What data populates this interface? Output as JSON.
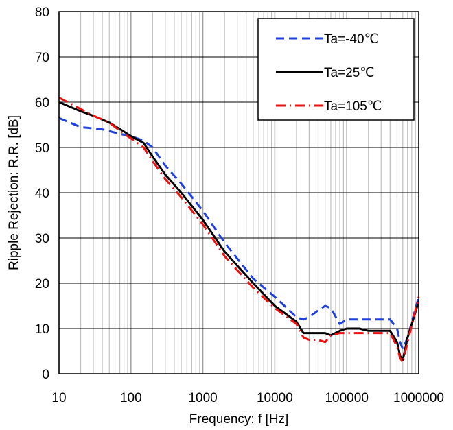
{
  "chart_data": {
    "type": "line",
    "xlabel": "Frequency: f [Hz]",
    "ylabel": "Ripple Rejection: R.R. [dB]",
    "x_scale": "log",
    "xlim": [
      10,
      1000000
    ],
    "ylim": [
      0,
      80
    ],
    "x_ticks": [
      "10",
      "100",
      "1000",
      "10000",
      "100000",
      "1000000"
    ],
    "y_ticks": [
      "0",
      "10",
      "20",
      "30",
      "40",
      "50",
      "60",
      "70",
      "80"
    ],
    "grid": true,
    "legend_position": "top-right",
    "series": [
      {
        "name": "Ta=-40℃",
        "color": "#1f3fe0",
        "style": "dashed",
        "x": [
          10,
          20,
          40,
          70,
          100,
          150,
          200,
          300,
          500,
          1000,
          2000,
          5000,
          10000,
          20000,
          25000,
          30000,
          40000,
          50000,
          60000,
          80000,
          100000,
          150000,
          200000,
          300000,
          400000,
          500000,
          550000,
          600000,
          700000,
          1000000
        ],
        "y": [
          56.5,
          54.5,
          54,
          53,
          52.5,
          51.5,
          50,
          46,
          42,
          36,
          29,
          21,
          17,
          12.5,
          12,
          12.5,
          14,
          15,
          14.5,
          11,
          12,
          12,
          12,
          12,
          12,
          10,
          7,
          5.5,
          8,
          17
        ]
      },
      {
        "name": "Ta=25℃",
        "color": "#000000",
        "style": "solid",
        "x": [
          10,
          20,
          30,
          50,
          80,
          100,
          150,
          200,
          300,
          500,
          1000,
          2000,
          5000,
          10000,
          20000,
          25000,
          30000,
          50000,
          60000,
          80000,
          100000,
          150000,
          200000,
          300000,
          400000,
          500000,
          550000,
          600000,
          700000,
          1000000
        ],
        "y": [
          60,
          58,
          57,
          55.5,
          53.5,
          52.5,
          51,
          48,
          44,
          40,
          34,
          27,
          20,
          15,
          11.5,
          9,
          9,
          9,
          8.5,
          9.5,
          10,
          10,
          9.5,
          9.5,
          9.5,
          7,
          4,
          3,
          8,
          16
        ]
      },
      {
        "name": "Ta=105℃",
        "color": "#ee1111",
        "style": "dash-dot",
        "x": [
          10,
          20,
          30,
          50,
          80,
          100,
          150,
          200,
          300,
          500,
          1000,
          2000,
          5000,
          10000,
          20000,
          25000,
          30000,
          40000,
          50000,
          60000,
          80000,
          100000,
          150000,
          200000,
          300000,
          400000,
          500000,
          550000,
          600000,
          700000,
          1000000
        ],
        "y": [
          61,
          58.5,
          57,
          55.5,
          53,
          52,
          50,
          47,
          43,
          39,
          33,
          26,
          19,
          14.5,
          11,
          8,
          7.5,
          7.5,
          7,
          8.5,
          9,
          9,
          9,
          9,
          9,
          9,
          6,
          3.5,
          2.5,
          7,
          17
        ]
      }
    ]
  }
}
